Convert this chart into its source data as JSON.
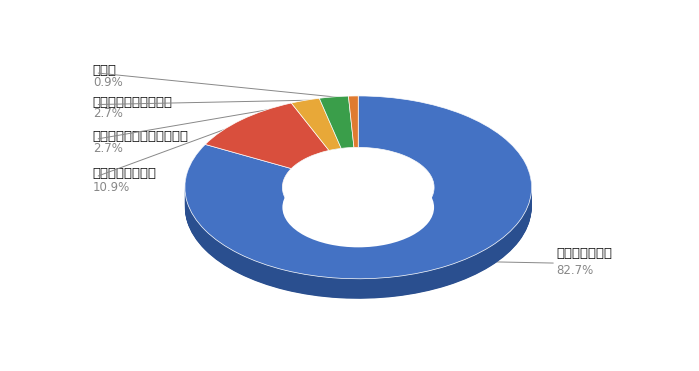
{
  "labels": [
    "人材不足の解消",
    "若手労働力の確保",
    "新しい知識やスキルの拡充",
    "外国人利用者への対応",
    "その他"
  ],
  "values": [
    82.7,
    10.9,
    2.7,
    2.7,
    0.9
  ],
  "colors": [
    "#4472C4",
    "#D94F3D",
    "#E8A838",
    "#3A9E4A",
    "#E07B30"
  ],
  "dark_colors": [
    "#2A4F8F",
    "#8B2020",
    "#9A6A10",
    "#1F6B2A",
    "#9A4A10"
  ],
  "pct_labels": [
    "82.7%",
    "10.9%",
    "2.7%",
    "2.7%",
    "0.9%"
  ],
  "background_color": "#FFFFFF",
  "label_color": "#222222",
  "pct_color": "#888888",
  "label_fontsize": 9.5,
  "pct_fontsize": 8.5,
  "start_angle": 90,
  "font_family": "Noto Sans CJK JP"
}
